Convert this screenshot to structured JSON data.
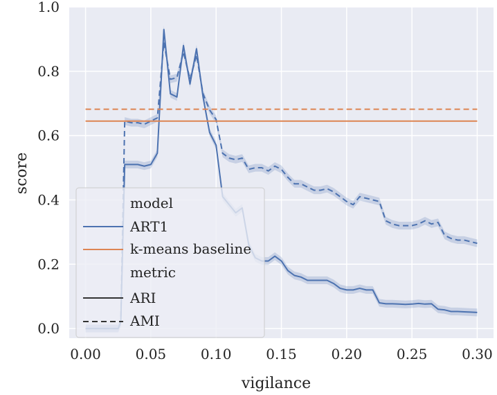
{
  "chart_data": {
    "type": "line",
    "xlabel": "vigilance",
    "ylabel": "score",
    "xlim": [
      -0.0125,
      0.3125
    ],
    "ylim": [
      -0.03,
      1.0
    ],
    "x_ticks": [
      0.0,
      0.05,
      0.1,
      0.15,
      0.2,
      0.25,
      0.3
    ],
    "x_tick_labels": [
      "0.00",
      "0.05",
      "0.10",
      "0.15",
      "0.20",
      "0.25",
      "0.30"
    ],
    "y_ticks": [
      0.0,
      0.2,
      0.4,
      0.6,
      0.8,
      1.0
    ],
    "y_tick_labels": [
      "0.0",
      "0.2",
      "0.4",
      "0.6",
      "0.8",
      "1.0"
    ],
    "grid": true,
    "background": "#e9ebf3",
    "legend_position": "lower-left",
    "legend": {
      "model_title": "model",
      "metric_title": "metric",
      "entries": [
        {
          "label": "ART1",
          "kind": "color",
          "color": "#4c72b0"
        },
        {
          "label": "k-means baseline",
          "kind": "color",
          "color": "#dd8452"
        },
        {
          "label": "ARI",
          "kind": "style",
          "dash": "solid"
        },
        {
          "label": "AMI",
          "kind": "style",
          "dash": "dashed"
        }
      ]
    },
    "colors": {
      "art1": "#4c72b0",
      "kmeans": "#dd8452"
    },
    "series": [
      {
        "model": "ART1",
        "metric": "ARI",
        "dash": "solid",
        "color": "#4c72b0",
        "x": [
          0.0,
          0.025,
          0.027,
          0.03,
          0.035,
          0.04,
          0.045,
          0.05,
          0.055,
          0.06,
          0.065,
          0.07,
          0.075,
          0.08,
          0.085,
          0.09,
          0.095,
          0.1,
          0.105,
          0.11,
          0.115,
          0.12,
          0.125,
          0.13,
          0.135,
          0.14,
          0.145,
          0.15,
          0.155,
          0.16,
          0.165,
          0.17,
          0.175,
          0.18,
          0.185,
          0.19,
          0.195,
          0.2,
          0.205,
          0.21,
          0.215,
          0.22,
          0.225,
          0.23,
          0.235,
          0.24,
          0.245,
          0.25,
          0.255,
          0.26,
          0.265,
          0.27,
          0.275,
          0.28,
          0.285,
          0.29,
          0.295,
          0.3
        ],
        "y": [
          0.0,
          0.0,
          0.02,
          0.51,
          0.51,
          0.51,
          0.505,
          0.51,
          0.545,
          0.93,
          0.73,
          0.72,
          0.88,
          0.76,
          0.87,
          0.72,
          0.61,
          0.57,
          0.41,
          0.385,
          0.36,
          0.375,
          0.26,
          0.22,
          0.21,
          0.21,
          0.225,
          0.21,
          0.18,
          0.165,
          0.16,
          0.15,
          0.15,
          0.15,
          0.15,
          0.14,
          0.125,
          0.12,
          0.12,
          0.125,
          0.12,
          0.12,
          0.08,
          0.077,
          0.077,
          0.076,
          0.075,
          0.076,
          0.078,
          0.076,
          0.077,
          0.06,
          0.058,
          0.053,
          0.053,
          0.052,
          0.051,
          0.05
        ]
      },
      {
        "model": "ART1",
        "metric": "AMI",
        "dash": "dashed",
        "color": "#4c72b0",
        "x": [
          0.0,
          0.025,
          0.027,
          0.03,
          0.035,
          0.04,
          0.045,
          0.05,
          0.055,
          0.06,
          0.065,
          0.07,
          0.075,
          0.08,
          0.085,
          0.09,
          0.095,
          0.1,
          0.105,
          0.11,
          0.115,
          0.12,
          0.125,
          0.13,
          0.135,
          0.14,
          0.145,
          0.15,
          0.155,
          0.16,
          0.165,
          0.17,
          0.175,
          0.18,
          0.185,
          0.19,
          0.195,
          0.2,
          0.205,
          0.21,
          0.215,
          0.22,
          0.225,
          0.23,
          0.235,
          0.24,
          0.245,
          0.25,
          0.255,
          0.26,
          0.265,
          0.27,
          0.275,
          0.28,
          0.285,
          0.29,
          0.295,
          0.3
        ],
        "y": [
          0.0,
          0.0,
          0.02,
          0.645,
          0.64,
          0.64,
          0.635,
          0.645,
          0.655,
          0.89,
          0.775,
          0.78,
          0.86,
          0.775,
          0.85,
          0.73,
          0.68,
          0.65,
          0.545,
          0.53,
          0.525,
          0.53,
          0.495,
          0.5,
          0.5,
          0.49,
          0.505,
          0.495,
          0.47,
          0.45,
          0.45,
          0.44,
          0.43,
          0.43,
          0.435,
          0.425,
          0.41,
          0.395,
          0.385,
          0.41,
          0.405,
          0.4,
          0.395,
          0.335,
          0.325,
          0.32,
          0.32,
          0.32,
          0.325,
          0.335,
          0.325,
          0.33,
          0.29,
          0.28,
          0.275,
          0.275,
          0.27,
          0.265
        ]
      },
      {
        "model": "k-means baseline",
        "metric": "ARI",
        "dash": "solid",
        "color": "#dd8452",
        "x": [
          0.0,
          0.3
        ],
        "y": [
          0.645,
          0.645
        ]
      },
      {
        "model": "k-means baseline",
        "metric": "AMI",
        "dash": "dashed",
        "color": "#dd8452",
        "x": [
          0.0,
          0.3
        ],
        "y": [
          0.682,
          0.682
        ]
      }
    ]
  }
}
